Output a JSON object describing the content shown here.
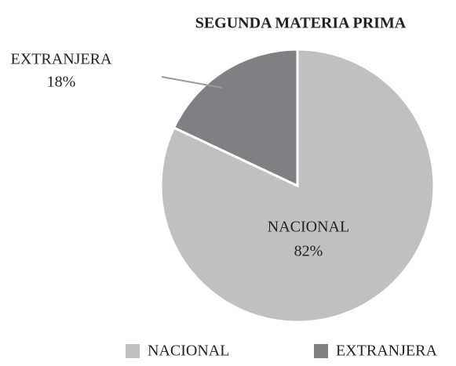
{
  "chart_data": {
    "type": "pie",
    "title": "SEGUNDA MATERIA PRIMA",
    "categories": [
      "NACIONAL",
      "EXTRANJERA"
    ],
    "values": [
      82,
      18
    ],
    "value_labels": [
      "82%",
      "18%"
    ],
    "colors": [
      "#c0c0c0",
      "#7f8083"
    ],
    "legend": "bottom"
  }
}
